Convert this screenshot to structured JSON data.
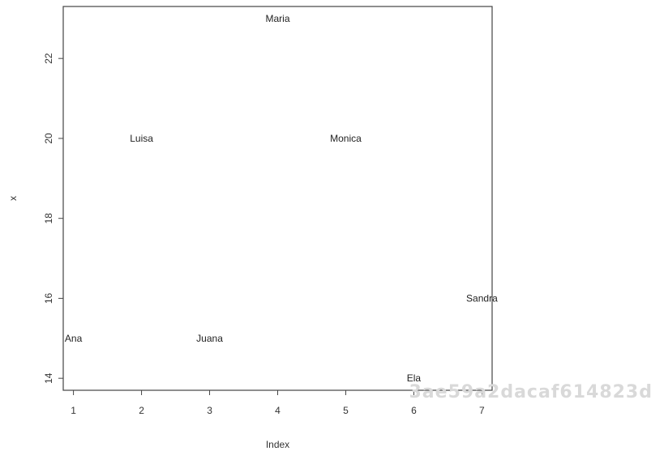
{
  "chart_data": {
    "type": "scatter",
    "title": "",
    "xlabel": "Index",
    "ylabel": "x",
    "xlim": [
      0.85,
      7.15
    ],
    "ylim": [
      13.7,
      23.3
    ],
    "xticks": [
      1,
      2,
      3,
      4,
      5,
      6,
      7
    ],
    "yticks": [
      14,
      16,
      18,
      20,
      22
    ],
    "x_tick_labels": [
      "1",
      "2",
      "3",
      "4",
      "5",
      "6",
      "7"
    ],
    "y_tick_labels": [
      "14",
      "16",
      "18",
      "20",
      "22"
    ],
    "grid": false,
    "points": [
      {
        "x": 1,
        "y": 15,
        "label": "Ana"
      },
      {
        "x": 2,
        "y": 20,
        "label": "Luisa"
      },
      {
        "x": 3,
        "y": 15,
        "label": "Juana"
      },
      {
        "x": 4,
        "y": 23,
        "label": "Maria"
      },
      {
        "x": 5,
        "y": 20,
        "label": "Monica"
      },
      {
        "x": 6,
        "y": 14,
        "label": "Ela"
      },
      {
        "x": 7,
        "y": 16,
        "label": "Sandra"
      }
    ]
  },
  "watermark": "3ae59a2dacaf614823d"
}
